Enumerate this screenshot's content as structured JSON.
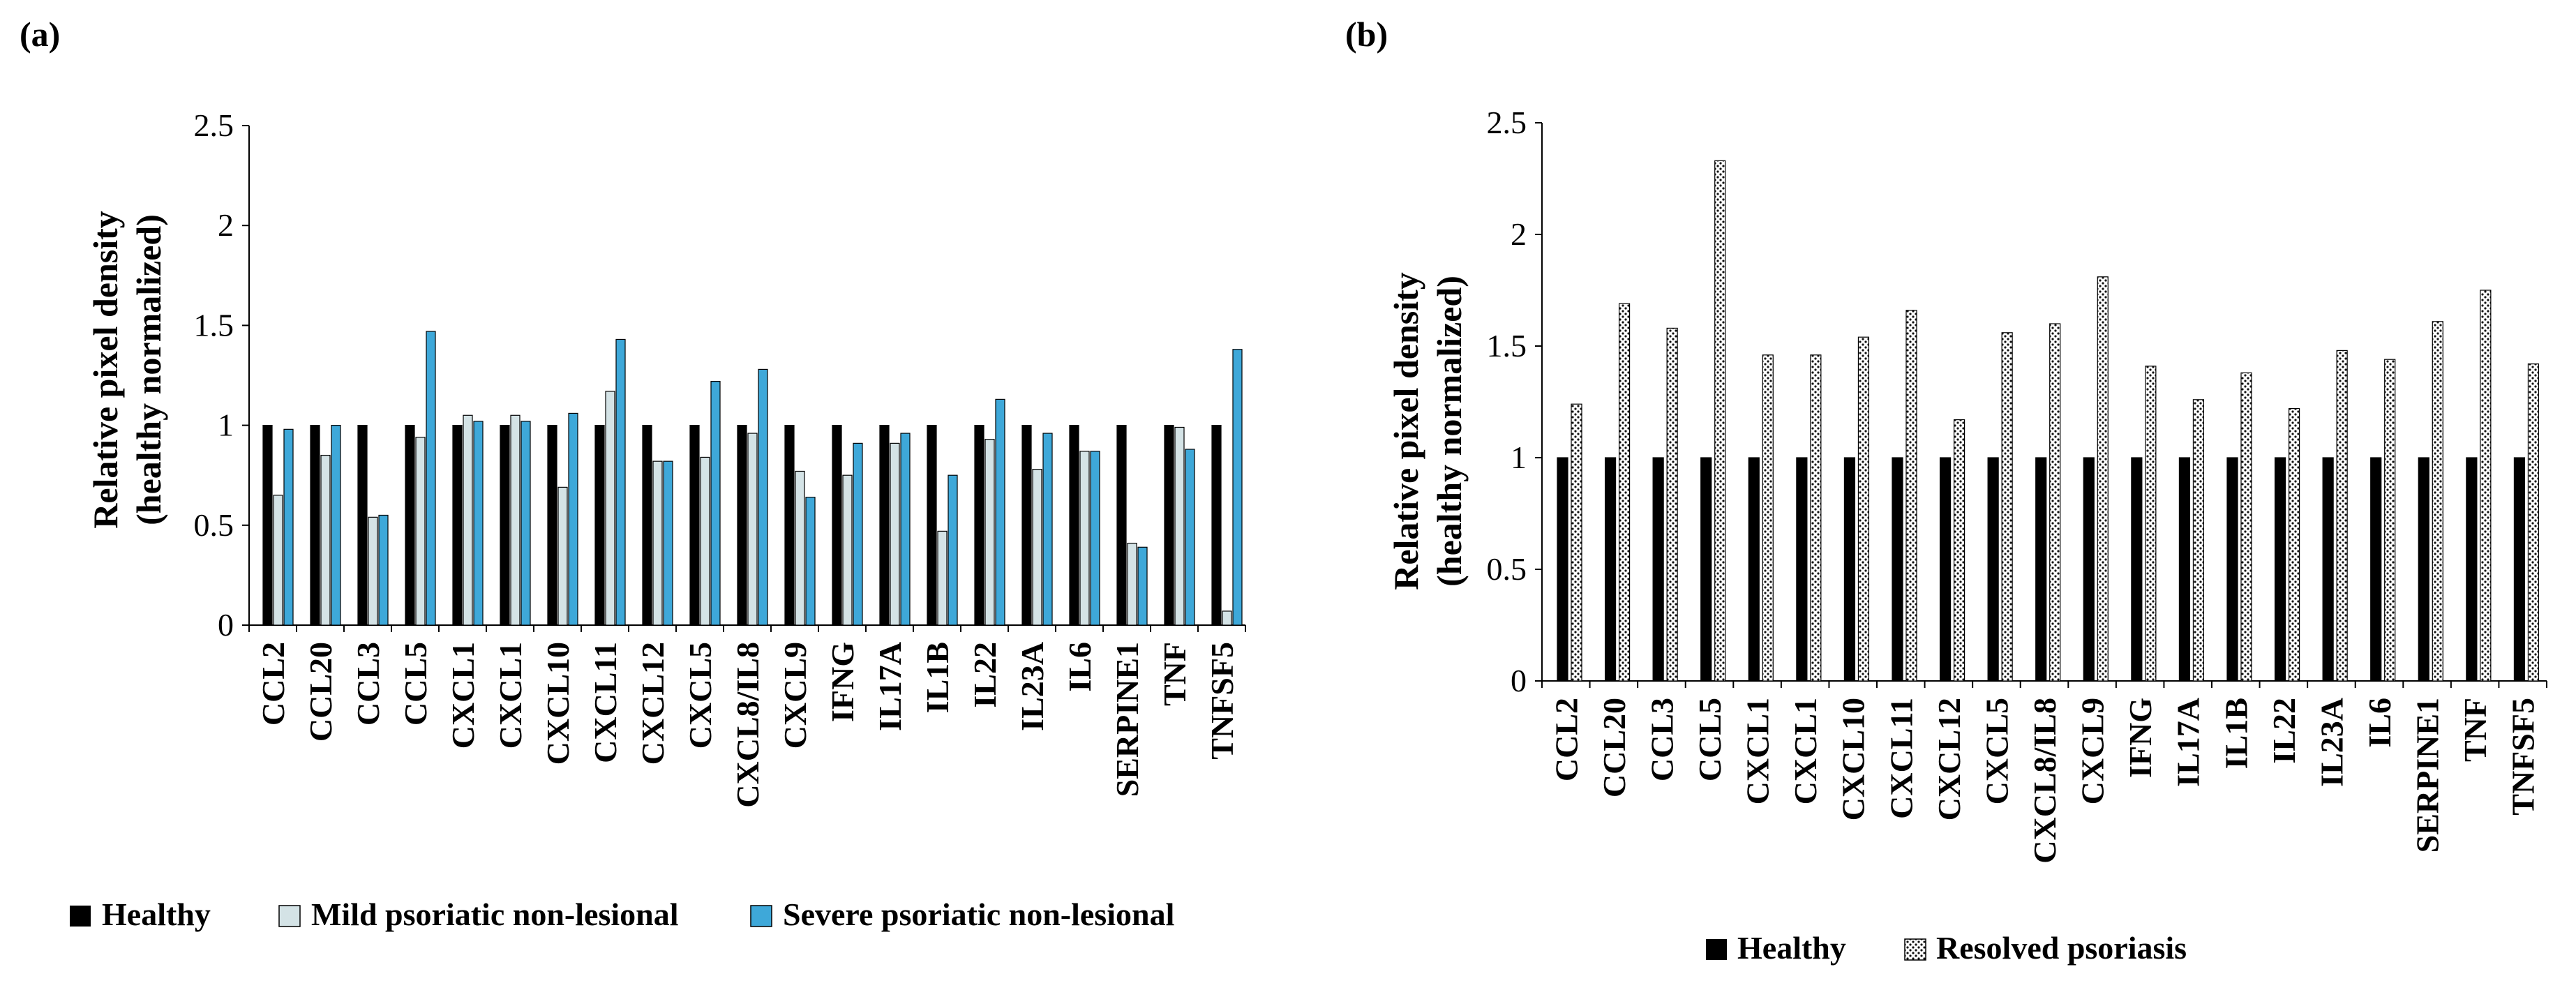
{
  "chart_data": [
    {
      "panel_label": "(a)",
      "type": "bar",
      "ylabel_line1": "Relative pixel density",
      "ylabel_line2": "(healthy normalized)",
      "ylim": [
        0,
        2.5
      ],
      "yticks": [
        "0",
        "0.5",
        "1",
        "1.5",
        "2",
        "2.5"
      ],
      "categories": [
        "CCL2",
        "CCL20",
        "CCL3",
        "CCL5",
        "CXCL1",
        "CXCL1",
        "CXCL10",
        "CXCL11",
        "CXCL12",
        "CXCL5",
        "CXCL8/IL8",
        "CXCL9",
        "IFNG",
        "IL17A",
        "IL1B",
        "IL22",
        "IL23A",
        "IL6",
        "SERPINE1",
        "TNF",
        "TNFSF5"
      ],
      "series": [
        {
          "name": "Healthy",
          "color": "#000000",
          "values": [
            1,
            1,
            1,
            1,
            1,
            1,
            1,
            1,
            1,
            1,
            1,
            1,
            1,
            1,
            1,
            1,
            1,
            1,
            1,
            1,
            1
          ]
        },
        {
          "name": "Mild psoriatic non-lesional",
          "color": "#d4e3e6",
          "values": [
            0.65,
            0.85,
            0.54,
            0.94,
            1.05,
            1.05,
            0.69,
            1.17,
            0.82,
            0.84,
            0.96,
            0.77,
            0.75,
            0.91,
            0.47,
            0.93,
            0.78,
            0.87,
            0.41,
            0.99,
            0.07
          ]
        },
        {
          "name": "Severe psoriatic non-lesional",
          "color": "#3ea8d9",
          "values": [
            0.98,
            1.0,
            0.55,
            1.47,
            1.02,
            1.02,
            1.06,
            1.43,
            0.82,
            1.22,
            1.28,
            0.64,
            0.91,
            0.96,
            0.75,
            1.13,
            0.96,
            0.87,
            0.39,
            0.88,
            1.38
          ]
        }
      ]
    },
    {
      "panel_label": "(b)",
      "type": "bar",
      "ylabel_line1": "Relative pixel density",
      "ylabel_line2": "(healthy normalized)",
      "ylim": [
        0,
        2.5
      ],
      "yticks": [
        "0",
        "0.5",
        "1",
        "1.5",
        "2",
        "2.5"
      ],
      "categories": [
        "CCL2",
        "CCL20",
        "CCL3",
        "CCL5",
        "CXCL1",
        "CXCL1",
        "CXCL10",
        "CXCL11",
        "CXCL12",
        "CXCL5",
        "CXCL8/IL8",
        "CXCL9",
        "IFNG",
        "IL17A",
        "IL1B",
        "IL22",
        "IL23A",
        "IL6",
        "SERPINE1",
        "TNF",
        "TNFSF5"
      ],
      "series": [
        {
          "name": "Healthy",
          "color": "#000000",
          "values": [
            1,
            1,
            1,
            1,
            1,
            1,
            1,
            1,
            1,
            1,
            1,
            1,
            1,
            1,
            1,
            1,
            1,
            1,
            1,
            1,
            1
          ]
        },
        {
          "name": "Resolved psoriasis",
          "color": "#bbbbbb",
          "pattern": "dotted",
          "values": [
            1.24,
            1.69,
            1.58,
            2.33,
            1.46,
            1.46,
            1.54,
            1.66,
            1.17,
            1.56,
            1.6,
            1.81,
            1.41,
            1.26,
            1.38,
            1.22,
            1.48,
            1.44,
            1.61,
            1.75,
            1.42
          ]
        }
      ]
    }
  ]
}
